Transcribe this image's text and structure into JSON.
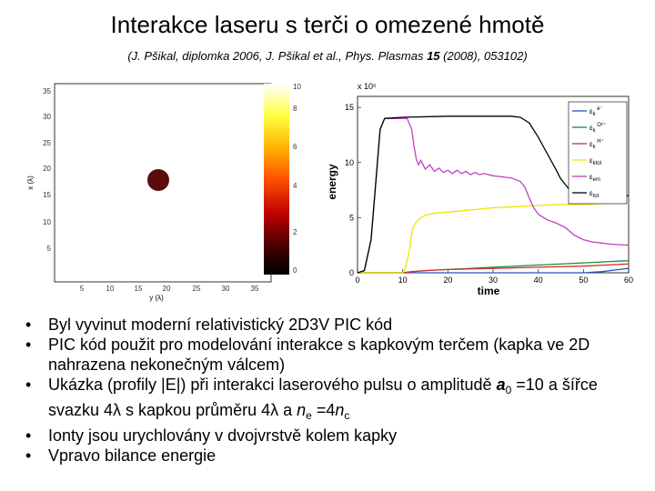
{
  "slide": {
    "title": "Interakce laseru s terči o omezené hmotě",
    "citation_part1": "(J. Pšikal, diplomka 2006, J. Pšikal et al., Phys. Plasmas ",
    "citation_bold": "15",
    "citation_part2": " (2008), 053102)"
  },
  "bullets": [
    {
      "text": "Byl vyvinut moderní relativistický 2D3V PIC kód"
    },
    {
      "text": "PIC kód použit pro modelování interakce s kapkovým terčem (kapka ve 2D nahrazena nekonečným válcem)"
    },
    {
      "pre": "Ukázka (profily |E|) při interakci laserového pulsu o amplitudě ",
      "a_sym": "a",
      "a_sub": "0",
      "a_rest": " =10 a šířce svazku 4",
      "lambda1": "λ",
      "mid": " s kapkou průměru 4",
      "lambda2": "λ",
      "and": " a ",
      "n_sym": "n",
      "ne_sub": "e",
      "eq": " =4",
      "n_sym2": "n",
      "nc_sub": "c"
    },
    {
      "text": "Ionty jsou urychlovány v dvojvrstvě kolem kapky"
    },
    {
      "text": "Vpravo bilance energie"
    }
  ],
  "left_plot": {
    "ylabel": "x (λ)",
    "xlabel": "y (λ)",
    "yticks": [
      "35",
      "30",
      "25",
      "20",
      "15",
      "10",
      "5"
    ],
    "xticks": [
      "5",
      "10",
      "15",
      "20",
      "25",
      "30",
      "35"
    ],
    "colorbar_ticks": [
      "10",
      "8",
      "6",
      "4",
      "2",
      "0"
    ],
    "colorbar_colors": [
      "#ffffff",
      "#ffff40",
      "#ffb000",
      "#ff5000",
      "#c00000",
      "#400000",
      "#000000"
    ],
    "droplet_color": "#5a0c0c"
  },
  "chart_data": {
    "type": "line",
    "xlabel": "time",
    "ylabel": "energy",
    "y_multiplier": "x 10⁵",
    "xlim": [
      0,
      60
    ],
    "ylim": [
      0,
      16
    ],
    "xticks": [
      0,
      10,
      20,
      30,
      40,
      50,
      60
    ],
    "yticks": [
      0,
      5,
      10,
      15
    ],
    "legend_position": "top-right",
    "series": [
      {
        "name": "εk e⁻",
        "label_base": "ε",
        "label_sub": "k",
        "label_sup": "e⁻",
        "color": "#3050c0",
        "x": [
          0,
          50,
          54,
          58,
          60
        ],
        "y": [
          0,
          0,
          0.1,
          0.3,
          0.4
        ]
      },
      {
        "name": "εk O⁶⁺",
        "label_base": "ε",
        "label_sub": "k",
        "label_sup": "O⁶⁺",
        "color": "#1a8a3a",
        "x": [
          0,
          10,
          12,
          15,
          20,
          30,
          40,
          50,
          55,
          60
        ],
        "y": [
          0,
          0,
          0.1,
          0.2,
          0.3,
          0.5,
          0.7,
          0.9,
          1.0,
          1.1
        ]
      },
      {
        "name": "εk H⁺",
        "label_base": "ε",
        "label_sub": "k",
        "label_sup": "H⁺",
        "color": "#d03030",
        "x": [
          0,
          10,
          12,
          15,
          20,
          30,
          40,
          50,
          55,
          60
        ],
        "y": [
          0,
          0,
          0.1,
          0.2,
          0.3,
          0.4,
          0.5,
          0.6,
          0.7,
          0.8
        ]
      },
      {
        "name": "εktot",
        "label_base": "ε",
        "label_sub": "ktot",
        "label_sup": "",
        "color": "#e8e800",
        "x": [
          0,
          10,
          10.5,
          11.5,
          12,
          12.5,
          13,
          13.5,
          14,
          15,
          17,
          20,
          25,
          30,
          35,
          40,
          45,
          50,
          55,
          60
        ],
        "y": [
          0,
          0,
          0.3,
          2.0,
          3.6,
          4.3,
          4.6,
          4.8,
          5.0,
          5.2,
          5.4,
          5.5,
          5.7,
          5.9,
          6.0,
          6.1,
          6.2,
          6.2,
          6.3,
          6.3
        ]
      },
      {
        "name": "εem",
        "label_base": "ε",
        "label_sub": "em",
        "label_sup": "",
        "color": "#c040c0",
        "x": [
          0,
          1.5,
          3,
          4,
          5,
          6,
          8,
          10,
          11,
          12,
          12.5,
          13,
          13.5,
          14,
          15,
          16,
          17,
          18,
          19,
          20,
          21,
          22,
          23,
          24,
          25,
          26,
          27,
          28,
          30,
          32,
          34,
          36,
          37,
          38,
          39,
          40,
          42,
          44,
          46,
          48,
          50,
          52,
          54,
          56,
          58,
          60
        ],
        "y": [
          0,
          0.2,
          3,
          8,
          13.0,
          14.0,
          14.0,
          14.0,
          14.0,
          13.0,
          11.5,
          10.3,
          9.8,
          10.2,
          9.4,
          9.8,
          9.2,
          9.5,
          9.1,
          9.3,
          9.0,
          9.3,
          9.0,
          9.2,
          8.9,
          9.1,
          8.9,
          9.0,
          8.8,
          8.7,
          8.6,
          8.3,
          7.8,
          6.8,
          5.9,
          5.3,
          4.8,
          4.5,
          4.1,
          3.4,
          3.0,
          2.8,
          2.7,
          2.6,
          2.55,
          2.5
        ]
      },
      {
        "name": "εtot",
        "label_base": "ε",
        "label_sub": "tot",
        "label_sup": "",
        "color": "#000000",
        "x": [
          0,
          1.5,
          3,
          4,
          5,
          6,
          10,
          20,
          30,
          34,
          36,
          38,
          40,
          42,
          44,
          45,
          46,
          47,
          48,
          50,
          55,
          60
        ],
        "y": [
          0,
          0.2,
          3,
          8,
          13.0,
          14.0,
          14.1,
          14.2,
          14.2,
          14.2,
          14.1,
          13.6,
          12.3,
          10.8,
          9.3,
          8.5,
          8.0,
          7.5,
          7.2,
          7.1,
          7.0,
          7.0
        ]
      }
    ]
  }
}
